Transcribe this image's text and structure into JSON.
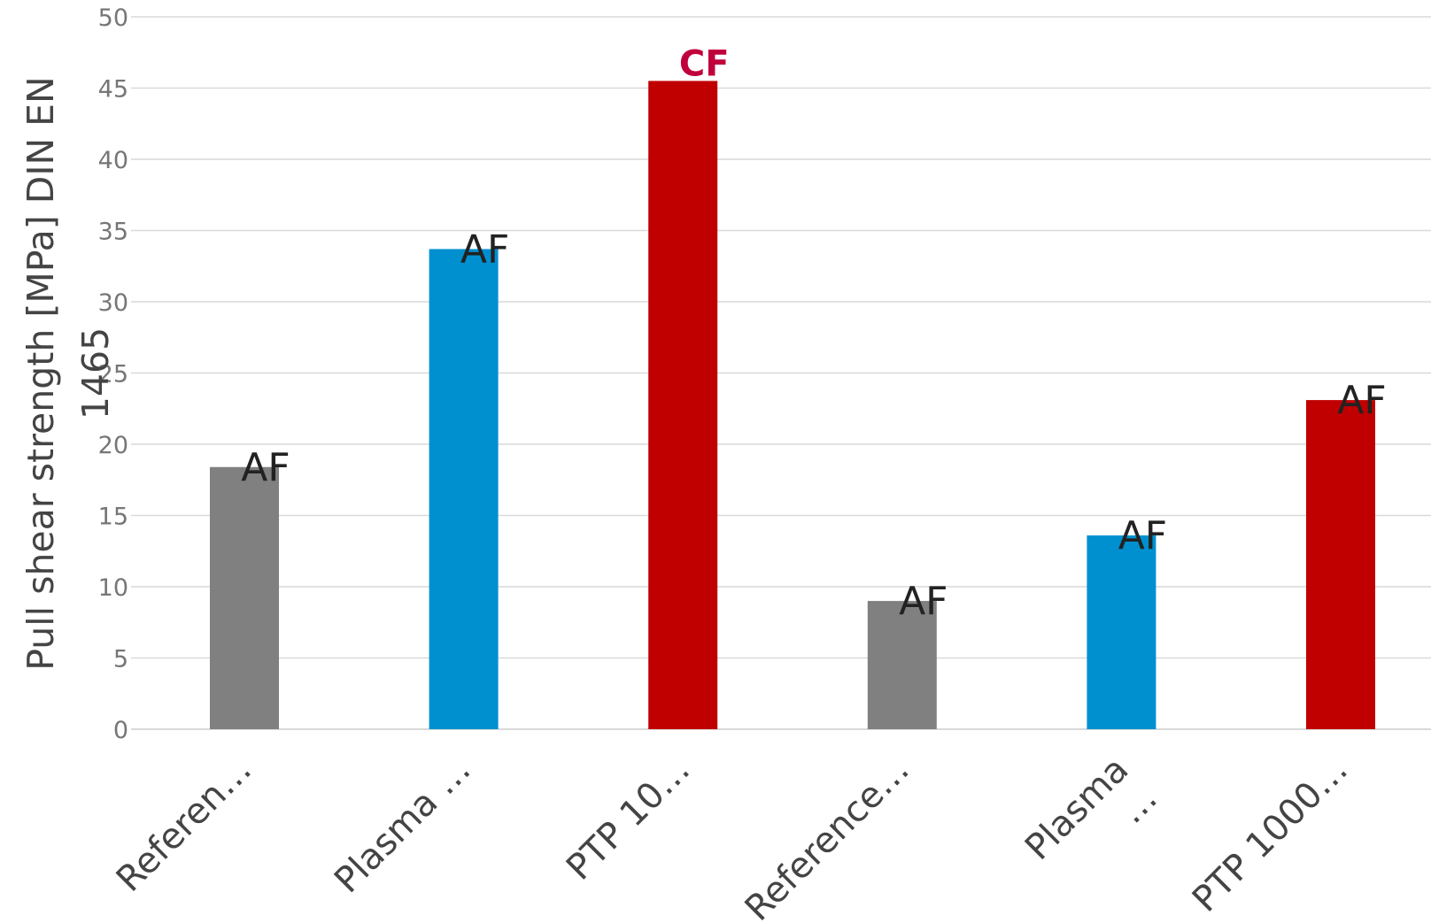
{
  "chart_data": {
    "type": "bar",
    "title": "",
    "xlabel": "",
    "ylabel_lines": [
      "Pull shear strength [MPa] DIN EN",
      "1465"
    ],
    "ylim": [
      0,
      50
    ],
    "yticks": [
      0,
      5,
      10,
      15,
      20,
      25,
      30,
      35,
      40,
      45,
      50
    ],
    "grid": true,
    "legend": "none",
    "categories": [
      {
        "lines": [
          "Referen…"
        ]
      },
      {
        "lines": [
          "Plasma …"
        ]
      },
      {
        "lines": [
          "PTP 10…"
        ]
      },
      {
        "lines": [
          "Reference…"
        ]
      },
      {
        "lines": [
          "Plasma",
          "…"
        ]
      },
      {
        "lines": [
          "PTP 1000…"
        ]
      }
    ],
    "values": [
      18.4,
      33.7,
      45.5,
      9.0,
      13.6,
      23.1
    ],
    "colors": [
      "#808080",
      "#0090d0",
      "#c00000",
      "#808080",
      "#0090d0",
      "#c00000"
    ],
    "data_labels": [
      "AF",
      "AF",
      "CF",
      "AF",
      "AF",
      "AF"
    ],
    "emphasized_labels": [
      false,
      false,
      true,
      false,
      false,
      false
    ],
    "emphasis_color": "#c0003c"
  }
}
